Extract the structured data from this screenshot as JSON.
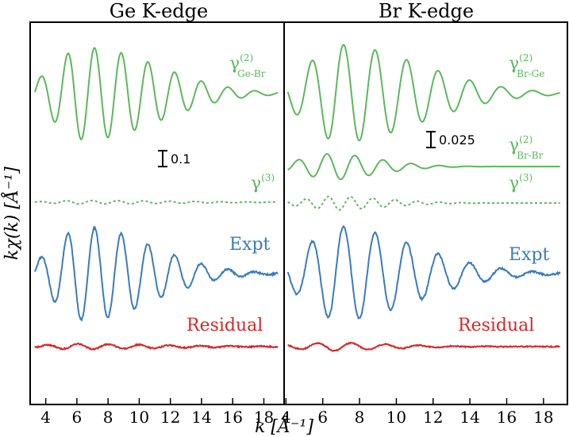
{
  "colors": {
    "green": "#5cb85c",
    "blue": "#3a7bbf",
    "red": "#d62728",
    "black": "#000000"
  },
  "chart_data": [
    {
      "type": "line",
      "title": "Ge K-edge",
      "xlabel": "k [Å⁻¹]",
      "ylabel": "kχ(k) [Å⁻¹]",
      "xlim": [
        3.0,
        19.3
      ],
      "xticks": [
        4,
        6,
        8,
        10,
        12,
        14,
        16,
        18
      ],
      "scale_bar": "0.1",
      "series": [
        {
          "name": "γ(2) Ge-Br",
          "label_main": "γ",
          "label_sup": "(2)",
          "label_sub": "Ge-Br",
          "color": "#5cb85c",
          "style": "solid",
          "offset": 118,
          "amplitude": 58,
          "k_peak": 6.6,
          "decay": 0.38,
          "r": 1.83,
          "phase": 0.6
        },
        {
          "name": "γ(3)",
          "label_main": "γ",
          "label_sup": "(3)",
          "label_sub": "",
          "color": "#5cb85c",
          "style": "dotted",
          "offset": 255,
          "amplitude": 2.2,
          "k_peak": 6.0,
          "decay": 0.2,
          "r": 1.9,
          "phase": 0.2
        },
        {
          "name": "Expt",
          "label_main": "Expt",
          "label_sup": "",
          "label_sub": "",
          "color": "#3a7bbf",
          "style": "solid",
          "offset": 345,
          "amplitude": 58,
          "k_peak": 6.6,
          "decay": 0.45,
          "r": 1.83,
          "phase": 0.6,
          "noise": 2.2
        },
        {
          "name": "Residual",
          "label_main": "Residual",
          "label_sup": "",
          "label_sub": "",
          "color": "#d62728",
          "style": "solid",
          "offset": 437,
          "amplitude": 3.5,
          "k_peak": 4.5,
          "decay": 0.2,
          "r": 1.6,
          "phase": 1.0,
          "noise": 1.6
        }
      ]
    },
    {
      "type": "line",
      "title": "Br K-edge",
      "xlabel": "k [Å⁻¹]",
      "ylabel": "",
      "xlim": [
        3.9,
        19.3
      ],
      "xticks": [
        4,
        6,
        8,
        10,
        12,
        14,
        16,
        18
      ],
      "scale_bar": "0.025",
      "series": [
        {
          "name": "γ(2) Br-Ge",
          "label_main": "γ",
          "label_sup": "(2)",
          "label_sub": "Br-Ge",
          "color": "#5cb85c",
          "style": "solid",
          "offset": 118,
          "amplitude": 62,
          "k_peak": 6.6,
          "decay": 0.38,
          "r": 1.83,
          "phase": 0.6
        },
        {
          "name": "γ(2) Br-Br",
          "label_main": "γ",
          "label_sup": "(2)",
          "label_sub": "Br-Br",
          "color": "#5cb85c",
          "style": "solid",
          "offset": 210,
          "amplitude": 18,
          "k_peak": 5.6,
          "decay": 0.9,
          "r": 2.05,
          "phase": 1.2
        },
        {
          "name": "γ(3)",
          "label_main": "γ",
          "label_sup": "(3)",
          "label_sub": "",
          "color": "#5cb85c",
          "style": "dotted",
          "offset": 256,
          "amplitude": 9,
          "k_peak": 6.0,
          "decay": 0.8,
          "r": 2.6,
          "phase": 0.2
        },
        {
          "name": "Expt",
          "label_main": "Expt",
          "label_sup": "",
          "label_sub": "",
          "color": "#3a7bbf",
          "style": "solid",
          "offset": 345,
          "amplitude": 60,
          "k_peak": 6.5,
          "decay": 0.42,
          "r": 1.83,
          "phase": 0.6,
          "noise": 2.2
        },
        {
          "name": "Residual",
          "label_main": "Residual",
          "label_sup": "",
          "label_sub": "",
          "color": "#d62728",
          "style": "solid",
          "offset": 437,
          "amplitude": 6,
          "k_peak": 4.7,
          "decay": 0.5,
          "r": 1.7,
          "phase": 1.0,
          "noise": 1.4
        }
      ]
    }
  ]
}
